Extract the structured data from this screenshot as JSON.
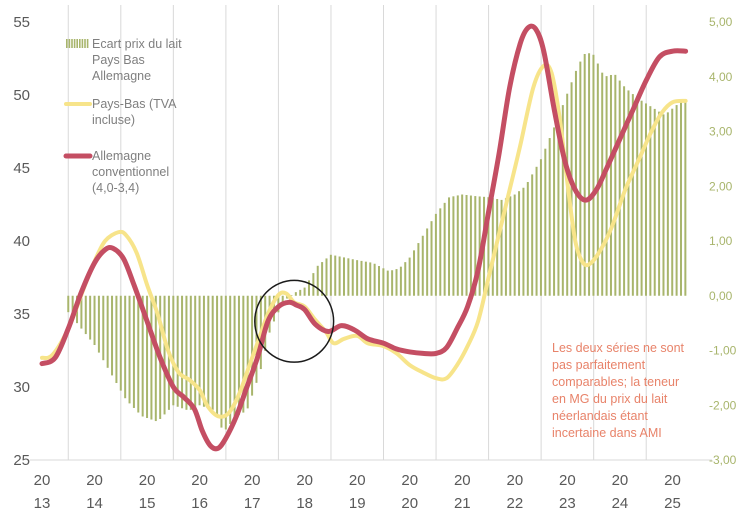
{
  "chart_data": {
    "type": "line+bar",
    "title": "",
    "left_axis": {
      "ticks": [
        "55",
        "50",
        "45",
        "40",
        "35",
        "30",
        "25"
      ],
      "range": [
        25,
        55
      ]
    },
    "right_axis": {
      "ticks": [
        "5,00",
        "4,00",
        "3,00",
        "2,00",
        "1,00",
        "0,00",
        "-1,00",
        "-2,00",
        "-3,00"
      ],
      "range": [
        -3,
        5
      ]
    },
    "x_axis": {
      "range": [
        2013,
        2025.6
      ],
      "ticks": [
        {
          "value": 2013,
          "top": "20",
          "bottom": "13"
        },
        {
          "value": 2014,
          "top": "20",
          "bottom": "14"
        },
        {
          "value": 2015,
          "top": "20",
          "bottom": "15"
        },
        {
          "value": 2016,
          "top": "20",
          "bottom": "16"
        },
        {
          "value": 2017,
          "top": "20",
          "bottom": "17"
        },
        {
          "value": 2018,
          "top": "20",
          "bottom": "18"
        },
        {
          "value": 2019,
          "top": "20",
          "bottom": "19"
        },
        {
          "value": 2020,
          "top": "20",
          "bottom": "20"
        },
        {
          "value": 2021,
          "top": "20",
          "bottom": "21"
        },
        {
          "value": 2022,
          "top": "20",
          "bottom": "22"
        },
        {
          "value": 2023,
          "top": "20",
          "bottom": "23"
        },
        {
          "value": 2024,
          "top": "20",
          "bottom": "24"
        },
        {
          "value": 2025,
          "top": "20",
          "bottom": "25"
        }
      ]
    },
    "legend": [
      {
        "name": "Ecart prix du lait Pays Bas Allemagne",
        "lines": [
          "Ecart prix du lait",
          "Pays Bas",
          "Allemagne"
        ],
        "color": "#a8b56c",
        "kind": "bar"
      },
      {
        "name": "Pays-Bas (TVA incluse)",
        "lines": [
          "Pays-Bas (TVA",
          "incluse)"
        ],
        "color": "#f7e48a",
        "kind": "line"
      },
      {
        "name": "Allemagne conventionnel (4,0-3,4)",
        "lines": [
          "Allemagne",
          "conventionnel",
          "(4,0-3,4)"
        ],
        "color": "#c44e63",
        "kind": "line"
      }
    ],
    "annotation": {
      "lines": [
        "Les deux séries ne sont",
        "pas parfaitement",
        "comparables; la teneur",
        "en MG du prix du lait",
        "néerlandais étant",
        "incertaine dans AMI"
      ],
      "color": "#e8836a"
    },
    "highlight_ellipse": {
      "x_center": 2017.8,
      "y_center": 34.5,
      "x_radius": 0.75,
      "y_radius": 2.8
    },
    "series": [
      {
        "name": "Pays-Bas (TVA incluse)",
        "axis": "left",
        "color": "#f7e48a",
        "points": [
          [
            2013.0,
            32.0
          ],
          [
            2013.2,
            32.2
          ],
          [
            2013.5,
            34.0
          ],
          [
            2013.8,
            36.8
          ],
          [
            2014.0,
            38.6
          ],
          [
            2014.2,
            40.0
          ],
          [
            2014.45,
            40.6
          ],
          [
            2014.6,
            40.4
          ],
          [
            2014.8,
            39.2
          ],
          [
            2015.0,
            37.0
          ],
          [
            2015.2,
            35.0
          ],
          [
            2015.4,
            32.5
          ],
          [
            2015.6,
            31.0
          ],
          [
            2015.8,
            30.5
          ],
          [
            2016.0,
            29.8
          ],
          [
            2016.15,
            28.7
          ],
          [
            2016.35,
            28.0
          ],
          [
            2016.55,
            28.2
          ],
          [
            2016.75,
            29.5
          ],
          [
            2016.95,
            31.5
          ],
          [
            2017.1,
            33.0
          ],
          [
            2017.3,
            35.0
          ],
          [
            2017.5,
            36.3
          ],
          [
            2017.65,
            36.4
          ],
          [
            2017.8,
            35.8
          ],
          [
            2018.0,
            35.5
          ],
          [
            2018.2,
            34.6
          ],
          [
            2018.4,
            33.8
          ],
          [
            2018.55,
            33.0
          ],
          [
            2018.75,
            33.3
          ],
          [
            2019.0,
            33.5
          ],
          [
            2019.2,
            33.0
          ],
          [
            2019.5,
            32.8
          ],
          [
            2019.75,
            32.3
          ],
          [
            2020.0,
            31.5
          ],
          [
            2020.25,
            31.0
          ],
          [
            2020.5,
            30.6
          ],
          [
            2020.7,
            30.6
          ],
          [
            2020.9,
            31.5
          ],
          [
            2021.1,
            32.8
          ],
          [
            2021.3,
            34.5
          ],
          [
            2021.5,
            37.5
          ],
          [
            2021.7,
            40.5
          ],
          [
            2021.9,
            43.5
          ],
          [
            2022.1,
            46.5
          ],
          [
            2022.35,
            50.5
          ],
          [
            2022.55,
            52.0
          ],
          [
            2022.7,
            51.5
          ],
          [
            2022.85,
            48.5
          ],
          [
            2023.0,
            44.0
          ],
          [
            2023.15,
            40.0
          ],
          [
            2023.3,
            38.5
          ],
          [
            2023.45,
            38.5
          ],
          [
            2023.65,
            39.5
          ],
          [
            2023.85,
            41.0
          ],
          [
            2024.1,
            43.5
          ],
          [
            2024.35,
            45.5
          ],
          [
            2024.6,
            47.5
          ],
          [
            2024.8,
            48.8
          ],
          [
            2025.0,
            49.5
          ],
          [
            2025.25,
            49.6
          ]
        ]
      },
      {
        "name": "Allemagne conventionnel (4,0-3,4)",
        "axis": "left",
        "color": "#c44e63",
        "points": [
          [
            2013.0,
            31.6
          ],
          [
            2013.25,
            32.0
          ],
          [
            2013.5,
            34.0
          ],
          [
            2013.75,
            36.5
          ],
          [
            2014.0,
            38.5
          ],
          [
            2014.2,
            39.4
          ],
          [
            2014.35,
            39.5
          ],
          [
            2014.55,
            38.8
          ],
          [
            2014.75,
            37.0
          ],
          [
            2015.0,
            34.5
          ],
          [
            2015.25,
            32.0
          ],
          [
            2015.5,
            30.0
          ],
          [
            2015.7,
            29.3
          ],
          [
            2015.9,
            28.5
          ],
          [
            2016.05,
            27.0
          ],
          [
            2016.2,
            26.0
          ],
          [
            2016.35,
            25.8
          ],
          [
            2016.5,
            26.5
          ],
          [
            2016.7,
            28.0
          ],
          [
            2016.9,
            30.0
          ],
          [
            2017.1,
            32.0
          ],
          [
            2017.3,
            34.5
          ],
          [
            2017.5,
            35.5
          ],
          [
            2017.7,
            35.8
          ],
          [
            2017.85,
            35.6
          ],
          [
            2018.0,
            35.3
          ],
          [
            2018.2,
            34.3
          ],
          [
            2018.45,
            33.8
          ],
          [
            2018.7,
            34.2
          ],
          [
            2018.95,
            33.9
          ],
          [
            2019.2,
            33.3
          ],
          [
            2019.5,
            33.0
          ],
          [
            2019.75,
            32.6
          ],
          [
            2020.0,
            32.4
          ],
          [
            2020.25,
            32.3
          ],
          [
            2020.5,
            32.3
          ],
          [
            2020.7,
            32.7
          ],
          [
            2020.9,
            34.0
          ],
          [
            2021.1,
            35.5
          ],
          [
            2021.3,
            38.0
          ],
          [
            2021.5,
            42.0
          ],
          [
            2021.7,
            46.0
          ],
          [
            2021.9,
            50.5
          ],
          [
            2022.1,
            53.5
          ],
          [
            2022.25,
            54.6
          ],
          [
            2022.4,
            54.5
          ],
          [
            2022.55,
            53.0
          ],
          [
            2022.75,
            49.0
          ],
          [
            2022.95,
            45.5
          ],
          [
            2023.15,
            43.5
          ],
          [
            2023.35,
            42.8
          ],
          [
            2023.55,
            43.5
          ],
          [
            2023.75,
            45.0
          ],
          [
            2024.0,
            47.0
          ],
          [
            2024.25,
            49.0
          ],
          [
            2024.5,
            51.0
          ],
          [
            2024.75,
            52.6
          ],
          [
            2025.0,
            53.0
          ],
          [
            2025.25,
            53.0
          ]
        ]
      },
      {
        "name": "Ecart prix du lait Pays Bas Allemagne",
        "axis": "right",
        "type": "bar",
        "color": "#a8b56c",
        "bar_start": 2013.5,
        "bar_end": 2025.3,
        "bar_step": 0.0833,
        "points": [
          [
            2013.5,
            -0.3
          ],
          [
            2013.75,
            -0.6
          ],
          [
            2014.0,
            -0.9
          ],
          [
            2014.3,
            -1.4
          ],
          [
            2014.6,
            -1.9
          ],
          [
            2014.9,
            -2.2
          ],
          [
            2015.2,
            -2.3
          ],
          [
            2015.5,
            -2.0
          ],
          [
            2015.8,
            -2.1
          ],
          [
            2016.0,
            -2.0
          ],
          [
            2016.3,
            -2.1
          ],
          [
            2016.45,
            -2.5
          ],
          [
            2016.7,
            -2.2
          ],
          [
            2016.9,
            -2.1
          ],
          [
            2017.15,
            -1.4
          ],
          [
            2017.35,
            -0.6
          ],
          [
            2017.6,
            -0.1
          ],
          [
            2017.8,
            0.05
          ],
          [
            2018.0,
            0.15
          ],
          [
            2018.25,
            0.55
          ],
          [
            2018.5,
            0.75
          ],
          [
            2018.75,
            0.7
          ],
          [
            2019.0,
            0.65
          ],
          [
            2019.3,
            0.6
          ],
          [
            2019.6,
            0.45
          ],
          [
            2019.8,
            0.5
          ],
          [
            2020.0,
            0.7
          ],
          [
            2020.25,
            1.1
          ],
          [
            2020.5,
            1.5
          ],
          [
            2020.75,
            1.8
          ],
          [
            2021.0,
            1.85
          ],
          [
            2021.25,
            1.82
          ],
          [
            2021.5,
            1.8
          ],
          [
            2021.75,
            1.75
          ],
          [
            2022.0,
            1.85
          ],
          [
            2022.2,
            2.0
          ],
          [
            2022.5,
            2.5
          ],
          [
            2022.8,
            3.2
          ],
          [
            2023.0,
            3.7
          ],
          [
            2023.2,
            4.2
          ],
          [
            2023.35,
            4.45
          ],
          [
            2023.5,
            4.4
          ],
          [
            2023.7,
            4.0
          ],
          [
            2023.9,
            4.05
          ],
          [
            2024.1,
            3.8
          ],
          [
            2024.35,
            3.6
          ],
          [
            2024.6,
            3.45
          ],
          [
            2024.85,
            3.3
          ],
          [
            2025.1,
            3.5
          ],
          [
            2025.3,
            3.6
          ]
        ]
      }
    ]
  }
}
